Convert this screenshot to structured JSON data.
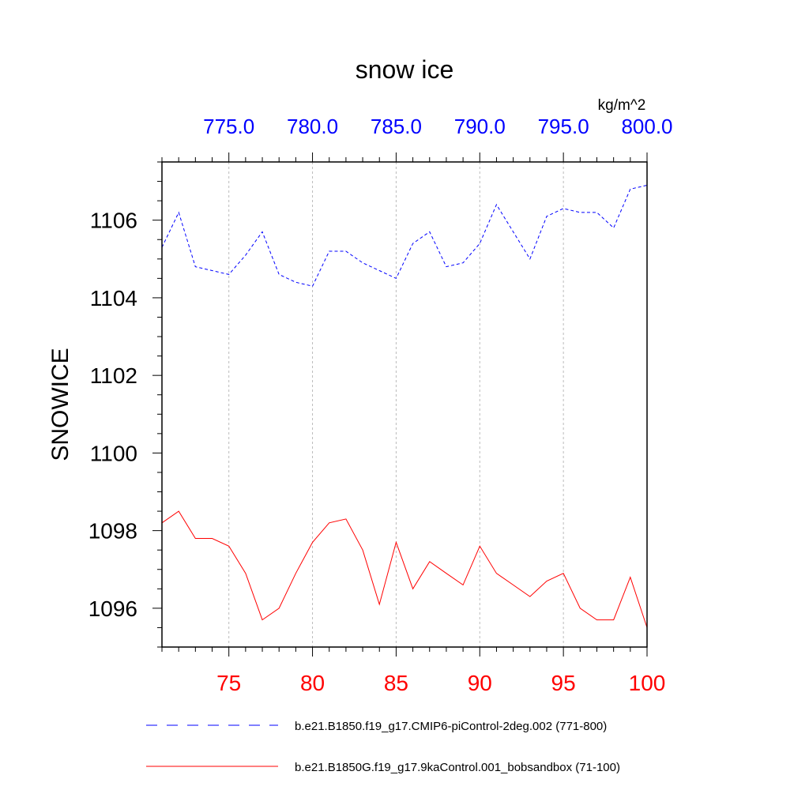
{
  "chart_data": {
    "type": "line",
    "title": "snow ice",
    "ylabel": "SNOWICE",
    "units": "kg/m^2",
    "ylim": [
      1095,
      1107.5
    ],
    "yticks": [
      1096,
      1098,
      1100,
      1102,
      1104,
      1106
    ],
    "bottom_axis": {
      "xlim": [
        71,
        100
      ],
      "ticks": [
        75,
        80,
        85,
        90,
        95,
        100
      ],
      "color": "#ff0000"
    },
    "top_axis": {
      "xlim": [
        771,
        800
      ],
      "ticks": [
        775,
        780,
        785,
        790,
        795,
        800
      ],
      "tick_labels": [
        "775.0",
        "780.0",
        "785.0",
        "790.0",
        "795.0",
        "800.0"
      ],
      "color": "#0000ff"
    },
    "series": [
      {
        "name": "b.e21.B1850.f19_g17.CMIP6-piControl-2deg.002 (771-800)",
        "axis": "top",
        "color": "#0000ff",
        "dash": "dashed",
        "x": [
          771,
          772,
          773,
          774,
          775,
          776,
          777,
          778,
          779,
          780,
          781,
          782,
          783,
          784,
          785,
          786,
          787,
          788,
          789,
          790,
          791,
          792,
          793,
          794,
          795,
          796,
          797,
          798,
          799,
          800
        ],
        "values": [
          1105.3,
          1106.2,
          1104.8,
          1104.7,
          1104.6,
          1105.1,
          1105.7,
          1104.6,
          1104.4,
          1104.3,
          1105.2,
          1105.2,
          1104.9,
          1104.7,
          1104.5,
          1105.4,
          1105.7,
          1104.8,
          1104.9,
          1105.4,
          1106.4,
          1105.7,
          1105.0,
          1106.1,
          1106.3,
          1106.2,
          1106.2,
          1105.8,
          1106.8,
          1106.9
        ]
      },
      {
        "name": "b.e21.B1850G.f19_g17.9kaControl.001_bobsandbox (71-100)",
        "axis": "bottom",
        "color": "#ff0000",
        "dash": "solid",
        "x": [
          71,
          72,
          73,
          74,
          75,
          76,
          77,
          78,
          79,
          80,
          81,
          82,
          83,
          84,
          85,
          86,
          87,
          88,
          89,
          90,
          91,
          92,
          93,
          94,
          95,
          96,
          97,
          98,
          99,
          100
        ],
        "values": [
          1098.2,
          1098.5,
          1097.8,
          1097.8,
          1097.6,
          1096.9,
          1095.7,
          1096.0,
          1096.9,
          1097.7,
          1098.2,
          1098.3,
          1097.5,
          1096.1,
          1097.7,
          1096.5,
          1097.2,
          1096.9,
          1096.6,
          1097.6,
          1096.9,
          1096.6,
          1096.3,
          1096.7,
          1096.9,
          1096.0,
          1095.7,
          1095.7,
          1096.8,
          1095.5
        ]
      }
    ]
  }
}
